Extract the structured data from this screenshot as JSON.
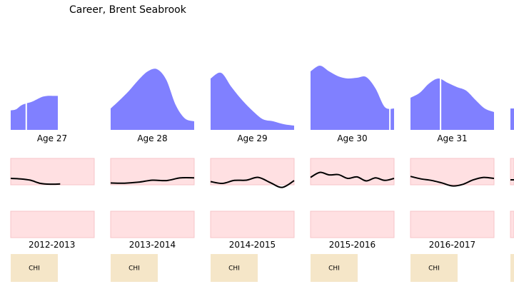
{
  "chart_data": {
    "type": "area",
    "title": "Career, Brent Seabrook",
    "colors": {
      "density": "#8080ff",
      "band": "#ffe0e2",
      "band_border": "#f7c4c8",
      "trend": "#000000",
      "team_box": "#f5e6c8",
      "marker": "#ffffff"
    },
    "seasons": [
      {
        "age_label": "Age 27",
        "season_label": "2012-2013",
        "team": "CHI",
        "density": [
          0.39,
          0.41,
          0.49,
          0.53,
          0.56,
          0.61,
          0.66,
          0.68,
          0.68,
          0.68
        ],
        "marker": 0.33,
        "trend": [
          0.0,
          -0.05,
          -0.18,
          -0.5,
          -0.58,
          -0.56
        ]
      },
      {
        "age_label": "Age 28",
        "season_label": "2013-2014",
        "team": "CHI",
        "density": [
          0.3,
          0.42,
          0.55,
          0.7,
          0.82,
          0.85,
          0.7,
          0.35,
          0.16,
          0.12
        ],
        "marker": null,
        "trend": [
          -0.46,
          -0.48,
          -0.38,
          -0.18,
          -0.22,
          0.05,
          0.06
        ]
      },
      {
        "age_label": "Age 29",
        "season_label": "2014-2015",
        "team": "CHI",
        "density": [
          0.72,
          0.8,
          0.6,
          0.42,
          0.27,
          0.15,
          0.12,
          0.08,
          0.06
        ],
        "marker": null,
        "trend": [
          -0.32,
          -0.5,
          -0.2,
          -0.18,
          0.1,
          -0.42,
          -0.9,
          -0.22
        ]
      },
      {
        "age_label": "Age 30",
        "season_label": "2015-2016",
        "team": "CHI",
        "density": [
          0.82,
          0.9,
          0.82,
          0.75,
          0.72,
          0.73,
          0.74,
          0.58,
          0.32,
          0.3
        ],
        "marker": 0.95,
        "trend": [
          0.1,
          0.6,
          0.35,
          0.38,
          0.0,
          0.15,
          -0.25,
          0.05,
          -0.2,
          0.0
        ]
      },
      {
        "age_label": "Age 31",
        "season_label": "2016-2017",
        "team": "CHI",
        "density": [
          0.45,
          0.52,
          0.65,
          0.72,
          0.66,
          0.6,
          0.55,
          0.42,
          0.3,
          0.25
        ],
        "marker": 0.36,
        "trend": [
          0.2,
          -0.05,
          -0.2,
          -0.45,
          -0.75,
          -0.6,
          -0.15,
          0.1,
          0.0
        ]
      }
    ]
  }
}
